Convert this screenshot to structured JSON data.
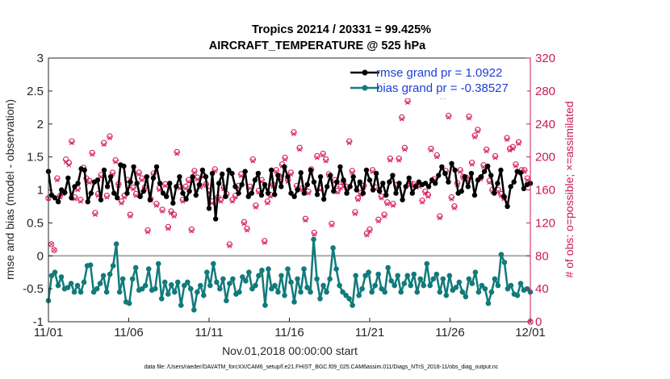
{
  "chart_data": {
    "type": "line",
    "title": "Tropics 20214 / 20331 = 99.425%",
    "subtitle": "AIRCRAFT_TEMPERATURE @ 525 hPa",
    "xlabel": "Nov.01,2018 00:00:00 start",
    "ylabel": "rmse and bias (model - observation)",
    "ylabel_right": "# of obs: o=possible; ×=assimilated",
    "xlim": [
      0,
      30
    ],
    "ylim": [
      -1,
      3
    ],
    "ylim_right": [
      0,
      320
    ],
    "x_tick_values": [
      0,
      5,
      10,
      15,
      20,
      25,
      30
    ],
    "x_tick_labels": [
      "11/01",
      "11/06",
      "11/11",
      "11/16",
      "11/21",
      "11/26",
      "12/01"
    ],
    "y_ticks": [
      "-1",
      "-0.5",
      "0",
      "0.5",
      "1",
      "1.5",
      "2",
      "2.5",
      "3"
    ],
    "y_tick_values": [
      -1,
      -0.5,
      0,
      0.5,
      1,
      1.5,
      2,
      2.5,
      3
    ],
    "y_right_ticks": [
      "0",
      "40",
      "80",
      "120",
      "160",
      "200",
      "240",
      "280",
      "320"
    ],
    "y_right_tick_values": [
      0,
      40,
      80,
      120,
      160,
      200,
      240,
      280,
      320
    ],
    "zero_line": 0,
    "x_step_days": 0.25,
    "legend": [
      {
        "label": "rmse grand pr = 1.0922",
        "color": "#000000",
        "marker": "star"
      },
      {
        "label": "bias grand pr = -0.38527",
        "color": "#117a7a",
        "marker": "circle"
      }
    ],
    "series": [
      {
        "name": "rmse",
        "color": "#000000",
        "values": [
          1.28,
          0.92,
          0.88,
          0.82,
          1.0,
          0.96,
          1.18,
          0.88,
          1.05,
          1.1,
          1.32,
          1.3,
          0.82,
          0.95,
          1.12,
          1.15,
          0.85,
          1.3,
          1.05,
          1.2,
          0.95,
          0.88,
          1.38,
          1.36,
          0.95,
          1.12,
          1.35,
          1.1,
          0.9,
          0.98,
          1.2,
          0.85,
          1.18,
          1.35,
          1.1,
          0.95,
          0.9,
          1.1,
          0.8,
          1.05,
          1.2,
          0.95,
          0.86,
          0.98,
          1.2,
          0.92,
          1.08,
          1.3,
          1.2,
          0.72,
          1.25,
          0.56,
          1.1,
          1.24,
          0.9,
          1.3,
          1.25,
          1.05,
          0.95,
          1.08,
          1.28,
          0.9,
          0.95,
          1.15,
          1.25,
          0.92,
          1.08,
          0.95,
          1.3,
          0.93,
          1.22,
          1.05,
          1.35,
          1.2,
          0.95,
          0.9,
          1.0,
          1.26,
          0.95,
          1.08,
          1.3,
          1.12,
          0.93,
          1.2,
          0.86,
          1.05,
          1.22,
          0.98,
          1.12,
          1.35,
          1.15,
          0.95,
          1.05,
          1.2,
          1.0,
          1.12,
          0.95,
          1.3,
          1.15,
          1.0,
          1.25,
          0.98,
          1.1,
          0.92,
          1.12,
          1.22,
          0.95,
          1.1,
          0.85,
          1.05,
          1.18,
          0.95,
          1.05,
          1.12,
          1.08,
          1.1,
          1.05,
          1.15,
          1.1,
          1.22,
          1.35,
          1.25,
          1.12,
          1.4,
          1.3,
          0.95,
          0.98,
          1.2,
          1.05,
          1.25,
          0.92,
          1.15,
          1.2,
          1.28,
          1.36,
          1.22,
          0.95,
          1.1,
          1.3,
          0.9,
          0.75,
          1.05,
          1.12,
          1.28,
          1.26,
          1.02,
          1.08,
          1.1
        ]
      },
      {
        "name": "bias",
        "color": "#117a7a",
        "values": [
          -0.68,
          -0.3,
          -0.25,
          -0.45,
          -0.32,
          -0.5,
          -0.48,
          -0.42,
          -0.55,
          -0.45,
          -0.55,
          -0.4,
          -0.15,
          -0.14,
          -0.55,
          -0.5,
          -0.42,
          -0.3,
          -0.55,
          -0.28,
          -0.15,
          0.18,
          -0.55,
          -0.35,
          -0.7,
          -0.72,
          -0.35,
          -0.18,
          -0.52,
          -0.5,
          -0.45,
          -0.2,
          -0.52,
          -0.5,
          -0.12,
          -0.65,
          -0.4,
          -0.58,
          -0.44,
          -0.55,
          -0.4,
          -0.75,
          -0.45,
          -0.4,
          -0.5,
          -0.82,
          -0.55,
          -0.45,
          -0.6,
          -0.25,
          -0.45,
          -0.12,
          -0.4,
          -0.5,
          -0.35,
          -0.68,
          -0.42,
          -0.35,
          -0.58,
          -0.55,
          -0.32,
          -0.38,
          -0.25,
          -0.5,
          -0.45,
          -0.3,
          -0.22,
          -0.75,
          -0.2,
          -0.5,
          -0.45,
          -0.55,
          -0.3,
          -0.6,
          -0.2,
          -0.4,
          -0.7,
          -0.35,
          -0.55,
          -0.2,
          -0.48,
          -0.55,
          0.25,
          -0.35,
          -0.65,
          -0.45,
          -0.55,
          -0.35,
          0.12,
          -0.2,
          -0.45,
          -0.55,
          -0.6,
          -0.65,
          -0.75,
          -0.3,
          -0.6,
          -0.5,
          -0.3,
          -0.25,
          -0.55,
          -0.45,
          -0.28,
          -0.5,
          -0.55,
          -0.18,
          -0.38,
          -0.45,
          -0.3,
          -0.55,
          -0.42,
          -0.3,
          -0.45,
          -0.28,
          -0.55,
          -0.35,
          -0.45,
          -0.12,
          -0.45,
          -0.35,
          -0.28,
          -0.55,
          -0.35,
          -0.6,
          -0.3,
          -0.52,
          -0.48,
          -0.4,
          -0.55,
          -0.62,
          -0.35,
          -0.42,
          -0.25,
          -0.55,
          -0.45,
          -0.5,
          -0.72,
          -0.55,
          -0.35,
          -0.45,
          0.02,
          -0.1,
          -0.5,
          -0.45,
          -0.58,
          -0.6,
          -0.42,
          -0.52,
          -0.5,
          -0.55
        ]
      },
      {
        "name": "obs_possible",
        "color": "#d6175d",
        "axis": "right",
        "values": [
          150,
          94,
          87,
          174,
          153,
          157,
          197,
          193,
          219,
          151,
          162,
          148,
          187,
          174,
          171,
          205,
          132,
          155,
          178,
          217,
          153,
          225,
          181,
          196,
          167,
          146,
          153,
          172,
          130,
          163,
          155,
          181,
          174,
          163,
          111,
          149,
          180,
          143,
          162,
          136,
          167,
          115,
          134,
          130,
          206,
          164,
          148,
          164,
          172,
          112,
          183,
          175,
          165,
          178,
          167,
          159,
          146,
          185,
          151,
          148,
          163,
          155,
          94,
          148,
          153,
          165,
          179,
          121,
          113,
          164,
          197,
          141,
          159,
          172,
          98,
          146,
          154,
          166,
          184,
          177,
          191,
          199,
          172,
          181,
          230,
          165,
          211,
          162,
          125,
          158,
          185,
          108,
          201,
          162,
          204,
          197,
          179,
          119,
          172,
          159,
          164,
          170,
          164,
          219,
          183,
          133,
          150,
          156,
          165,
          107,
          112,
          184,
          163,
          124,
          152,
          130,
          145,
          198,
          143,
          166,
          198,
          248,
          211,
          268,
          168,
          167,
          165,
          166,
          147,
          158,
          154,
          210,
          173,
          202,
          128,
          275,
          183,
          250,
          151,
          140,
          168,
          184,
          176,
          175,
          249,
          193,
          226,
          233,
          175,
          190,
          209,
          171,
          160,
          201,
          160,
          155,
          151,
          223,
          210,
          212,
          191,
          218,
          184,
          184,
          174,
          0
        ]
      },
      {
        "name": "obs_assimilated",
        "color": "#d6175d",
        "axis": "right",
        "values": [
          150,
          94,
          87,
          172,
          151,
          155,
          194,
          190,
          217,
          149,
          160,
          146,
          185,
          172,
          169,
          203,
          130,
          153,
          176,
          215,
          151,
          223,
          179,
          194,
          165,
          144,
          151,
          170,
          128,
          161,
          153,
          179,
          172,
          161,
          109,
          147,
          178,
          141,
          160,
          134,
          165,
          113,
          132,
          128,
          204,
          162,
          146,
          162,
          170,
          110,
          181,
          173,
          163,
          176,
          165,
          157,
          144,
          183,
          149,
          146,
          161,
          153,
          92,
          146,
          151,
          163,
          177,
          119,
          111,
          162,
          195,
          139,
          157,
          170,
          96,
          144,
          152,
          164,
          182,
          175,
          189,
          197,
          170,
          179,
          228,
          163,
          209,
          160,
          123,
          156,
          183,
          106,
          199,
          160,
          202,
          195,
          177,
          117,
          170,
          157,
          162,
          168,
          162,
          217,
          181,
          131,
          148,
          154,
          163,
          105,
          110,
          182,
          161,
          122,
          150,
          128,
          143,
          196,
          141,
          164,
          196,
          246,
          209,
          266,
          166,
          165,
          163,
          164,
          145,
          156,
          152,
          208,
          171,
          200,
          126,
          273,
          181,
          248,
          149,
          138,
          166,
          182,
          174,
          173,
          247,
          191,
          224,
          231,
          173,
          188,
          207,
          169,
          158,
          199,
          158,
          153,
          149,
          221,
          208,
          210,
          189,
          216,
          182,
          182,
          172,
          0
        ]
      }
    ]
  },
  "footer": "data file: /Users/raeder/DAI/ATM_forcXX/CAM6_setup/f.e21.FHIST_BGC.f09_025.CAM6assim.011/Diags_NTrS_2018-11/obs_diag_output.nc"
}
